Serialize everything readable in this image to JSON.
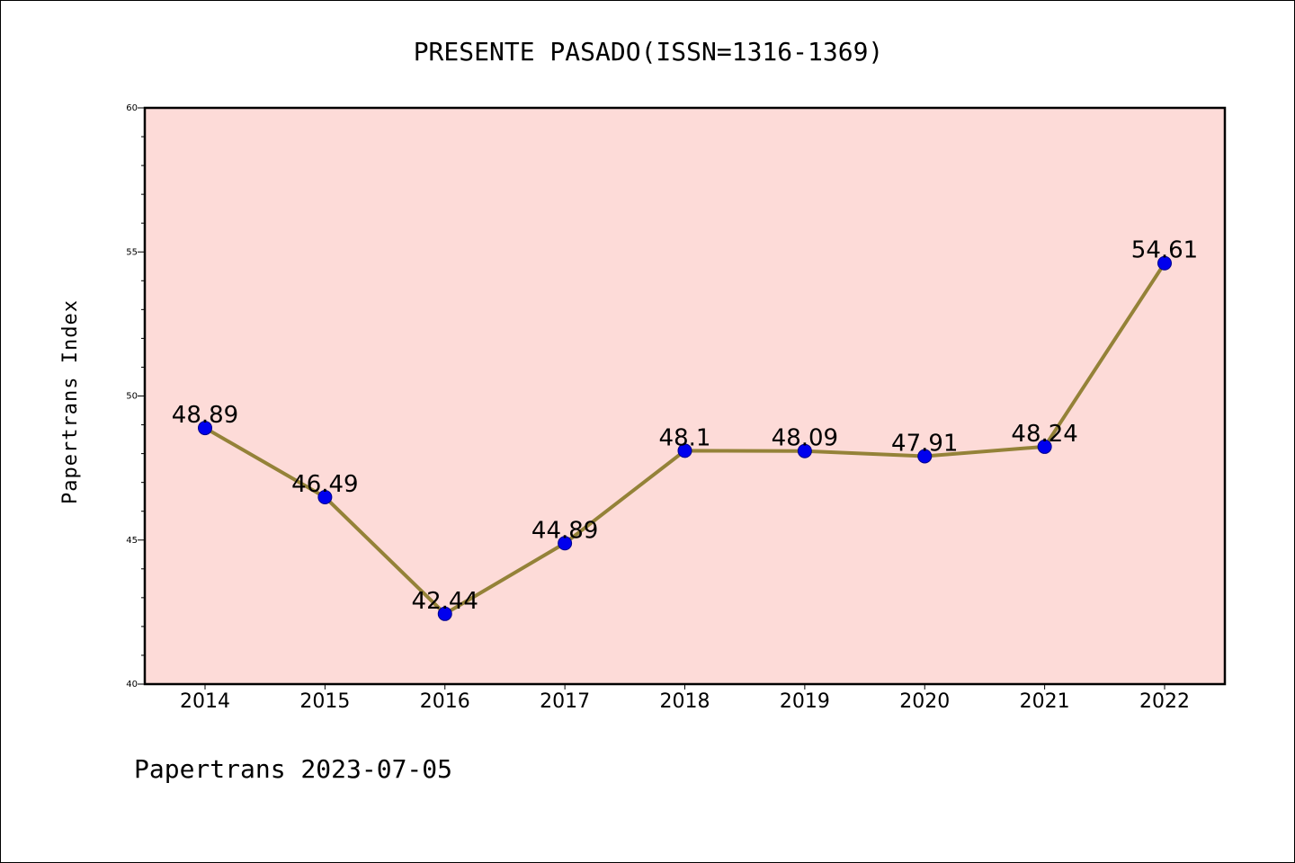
{
  "title": "PRESENTE PASADO(ISSN=1316-1369)",
  "ylabel": "Papertrans Index",
  "footer": "Papertrans 2023-07-05",
  "colors": {
    "plot_background": "#fddbd8",
    "line": "#948238",
    "marker_fill": "#0000ee",
    "marker_edge": "#00008b",
    "axis": "#000000"
  },
  "chart_data": {
    "type": "line",
    "title": "PRESENTE PASADO(ISSN=1316-1369)",
    "xlabel": "",
    "ylabel": "Papertrans Index",
    "categories": [
      "2014",
      "2015",
      "2016",
      "2017",
      "2018",
      "2019",
      "2020",
      "2021",
      "2022"
    ],
    "values": [
      48.89,
      46.49,
      42.44,
      44.89,
      48.1,
      48.09,
      47.91,
      48.24,
      54.61
    ],
    "data_labels": [
      "48.89",
      "46.49",
      "42.44",
      "44.89",
      "48.1",
      "48.09",
      "47.91",
      "48.24",
      "54.61"
    ],
    "ylim": [
      40,
      60
    ],
    "yticks": [
      40,
      45,
      50,
      55,
      60
    ],
    "ytick_labels": [
      "40",
      "45",
      "50",
      "55",
      "60"
    ],
    "grid": false,
    "legend": "none"
  }
}
